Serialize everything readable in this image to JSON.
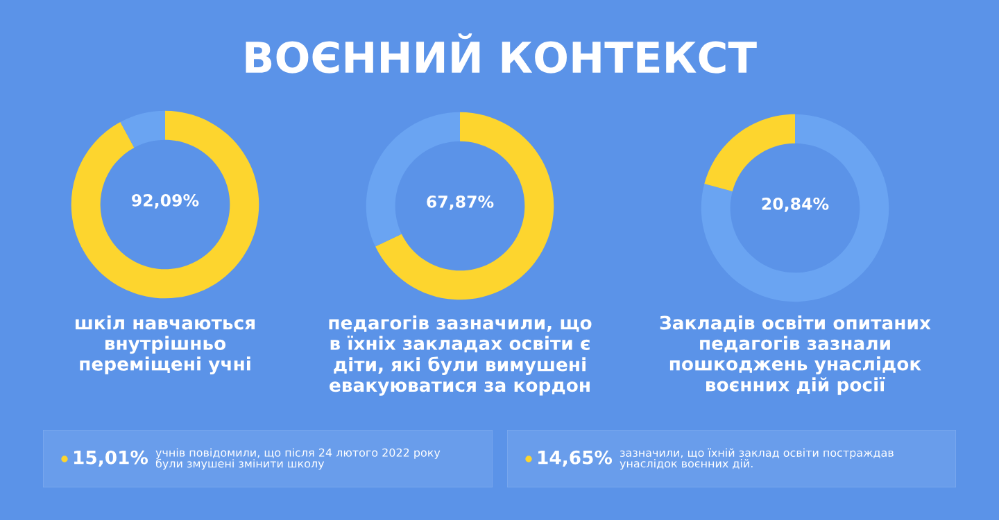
{
  "chart_data": [
    {
      "type": "other",
      "title": "ВОЄННИЙ КОНТЕКСТ"
    },
    {
      "type": "donut",
      "categories": [
        null,
        null
      ],
      "values": [
        92.09,
        7.91
      ],
      "colors": [
        "#fdd52e",
        "#6aa4f2"
      ],
      "value_labels": [
        "92,09%",
        null
      ],
      "annotations": [
        "шкіл навчаються\nвнутрішньо\nпереміщені учні"
      ]
    },
    {
      "type": "donut",
      "categories": [
        null,
        null
      ],
      "values": [
        67.87,
        32.13
      ],
      "colors": [
        "#fdd52e",
        "#6aa4f2"
      ],
      "value_labels": [
        "67,87%",
        null
      ],
      "annotations": [
        "педагогів зазначили, що\nв їхніх закладах освіти є\nдіти, які були вимушені\nевакуюватися за кордон"
      ]
    },
    {
      "type": "donut",
      "categories": [
        null,
        null
      ],
      "values": [
        79.16,
        20.84
      ],
      "colors": [
        "#6aa4f2",
        "#fdd52e"
      ],
      "value_labels": [
        null,
        "20,84%"
      ],
      "annotations": [
        "Закладів освіти опитаних\nпедагогів зазнали\nпошкоджень унаслідок\nвоєнних дій росії"
      ]
    },
    {
      "type": "other",
      "title": "15,01%",
      "subtitle": "учнів повідомили, що після 24 лютого 2022 року\nбули змушені змінити школу"
    },
    {
      "type": "other",
      "title": "14,65%",
      "subtitle": "зазначили, що їхній заклад освіти постраждав\nунаслідок воєнних дій."
    }
  ]
}
